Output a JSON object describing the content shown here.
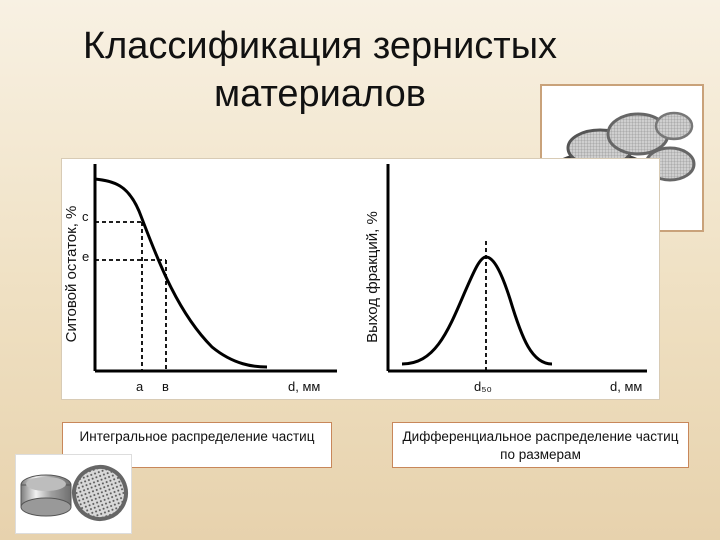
{
  "title_line1": "Классификация зернистых",
  "title_line2": "материалов",
  "left_chart": {
    "ylabel": "Ситовой остаток, %",
    "y_marks": [
      "c",
      "e"
    ],
    "x_marks": [
      "a",
      "в"
    ],
    "xlabel": "d, мм"
  },
  "right_chart": {
    "ylabel": "Выход фракций, %",
    "peak_label": "d₅₀",
    "xlabel": "d, мм"
  },
  "captions": {
    "integral": "Интегральное распределение частиц",
    "differential": "Дифференциальное распределение частиц по размерам"
  }
}
